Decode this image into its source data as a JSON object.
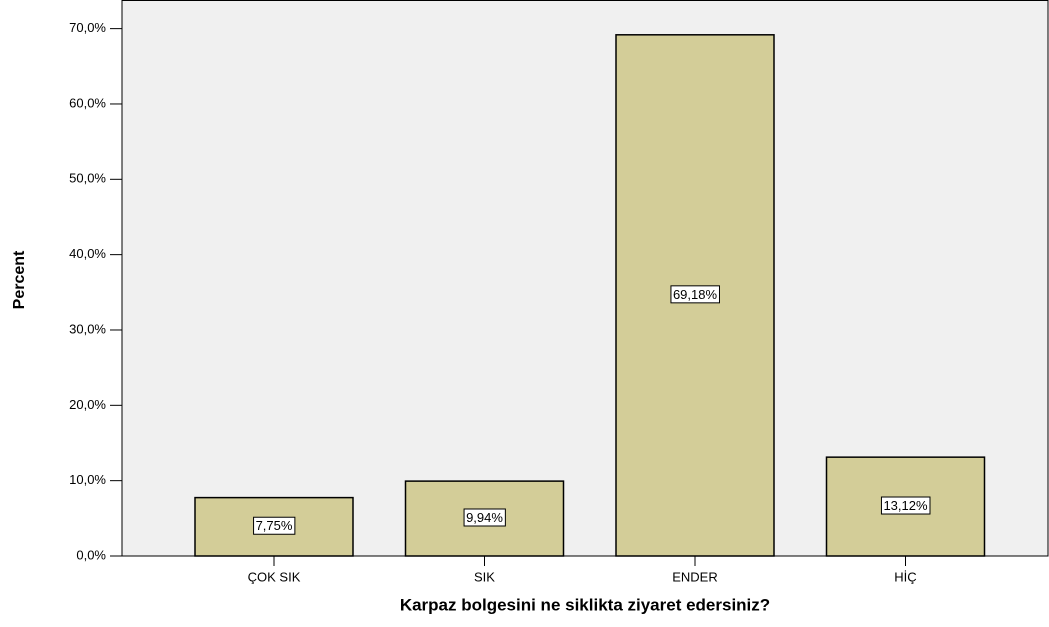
{
  "chart_data": {
    "type": "bar",
    "x_label": "Karpaz bolgesini ne siklikta ziyaret edersiniz?",
    "y_label": "Percent",
    "categories": [
      "ÇOK SIK",
      "SIK",
      "ENDER",
      "HİÇ"
    ],
    "values": [
      7.75,
      9.94,
      69.18,
      13.12
    ],
    "value_labels": [
      "7,75%",
      "9,94%",
      "69,18%",
      "13,12%"
    ],
    "color": "#d3cd98",
    "ylim": [
      0,
      73.8
    ],
    "yticks": [
      {
        "value": 0,
        "label": "0,0%"
      },
      {
        "value": 10,
        "label": "10,0%"
      },
      {
        "value": 20,
        "label": "20,0%"
      },
      {
        "value": 30,
        "label": "30,0%"
      },
      {
        "value": 40,
        "label": "40,0%"
      },
      {
        "value": 50,
        "label": "50,0%"
      },
      {
        "value": 60,
        "label": "60,0%"
      },
      {
        "value": 70,
        "label": "70,0%"
      }
    ]
  }
}
